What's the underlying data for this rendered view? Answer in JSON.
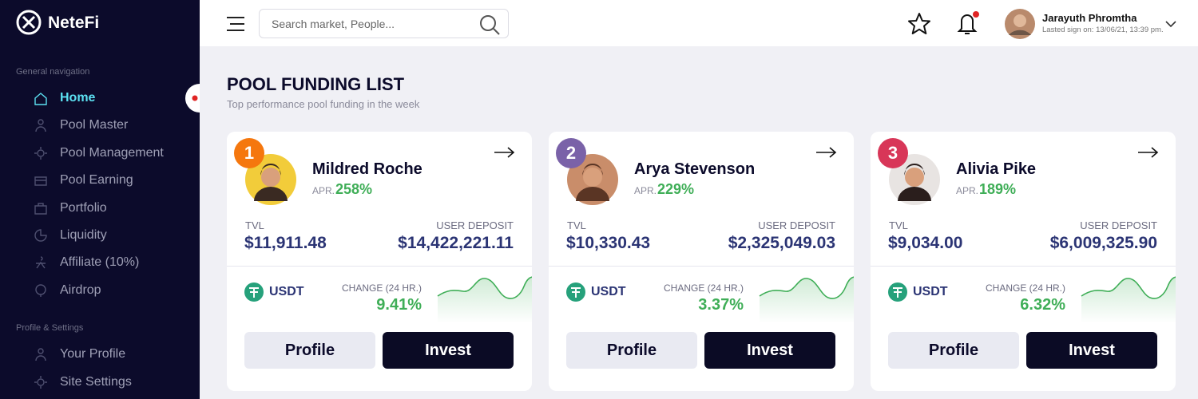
{
  "brand": "NeteFi",
  "search_placeholder": "Search market, People...",
  "user": {
    "name": "Jarayuth Phromtha",
    "last_sign_on": "Lasted sign on: 13/06/21, 13:39 pm."
  },
  "sidebar": {
    "sections": [
      {
        "title": "General navigation",
        "items": [
          "Home",
          "Pool Master",
          "Pool Management",
          "Pool Earning",
          "Portfolio",
          "Liquidity",
          "Affiliate (10%)",
          "Airdrop"
        ]
      },
      {
        "title": "Profile & Settings",
        "items": [
          "Your Profile",
          "Site Settings"
        ]
      }
    ]
  },
  "page": {
    "title": "POOL FUNDING LIST",
    "subtitle": "Top performance pool funding in the week"
  },
  "cards": [
    {
      "rank": 1,
      "name": "Mildred Roche",
      "apr_label": "APR.",
      "apr": "258%",
      "tvl_label": "TVL",
      "tvl": "$11,911.48",
      "deposit_label": "USER DEPOSIT",
      "deposit": "$14,422,221.11",
      "token": "USDT",
      "change_label": "CHANGE (24 HR.)",
      "change": "9.41%",
      "buttons": [
        "Profile",
        "Invest"
      ]
    },
    {
      "rank": 2,
      "name": "Arya Stevenson",
      "apr_label": "APR.",
      "apr": "229%",
      "tvl_label": "TVL",
      "tvl": "$10,330.43",
      "deposit_label": "USER DEPOSIT",
      "deposit": "$2,325,049.03",
      "token": "USDT",
      "change_label": "CHANGE (24 HR.)",
      "change": "3.37%",
      "buttons": [
        "Profile",
        "Invest"
      ]
    },
    {
      "rank": 3,
      "name": "Alivia Pike",
      "apr_label": "APR.",
      "apr": "189%",
      "tvl_label": "TVL",
      "tvl": "$9,034.00",
      "deposit_label": "USER DEPOSIT",
      "deposit": "$6,009,325.90",
      "token": "USDT",
      "change_label": "CHANGE (24 HR.)",
      "change": "6.32%",
      "buttons": [
        "Profile",
        "Invest"
      ]
    }
  ]
}
